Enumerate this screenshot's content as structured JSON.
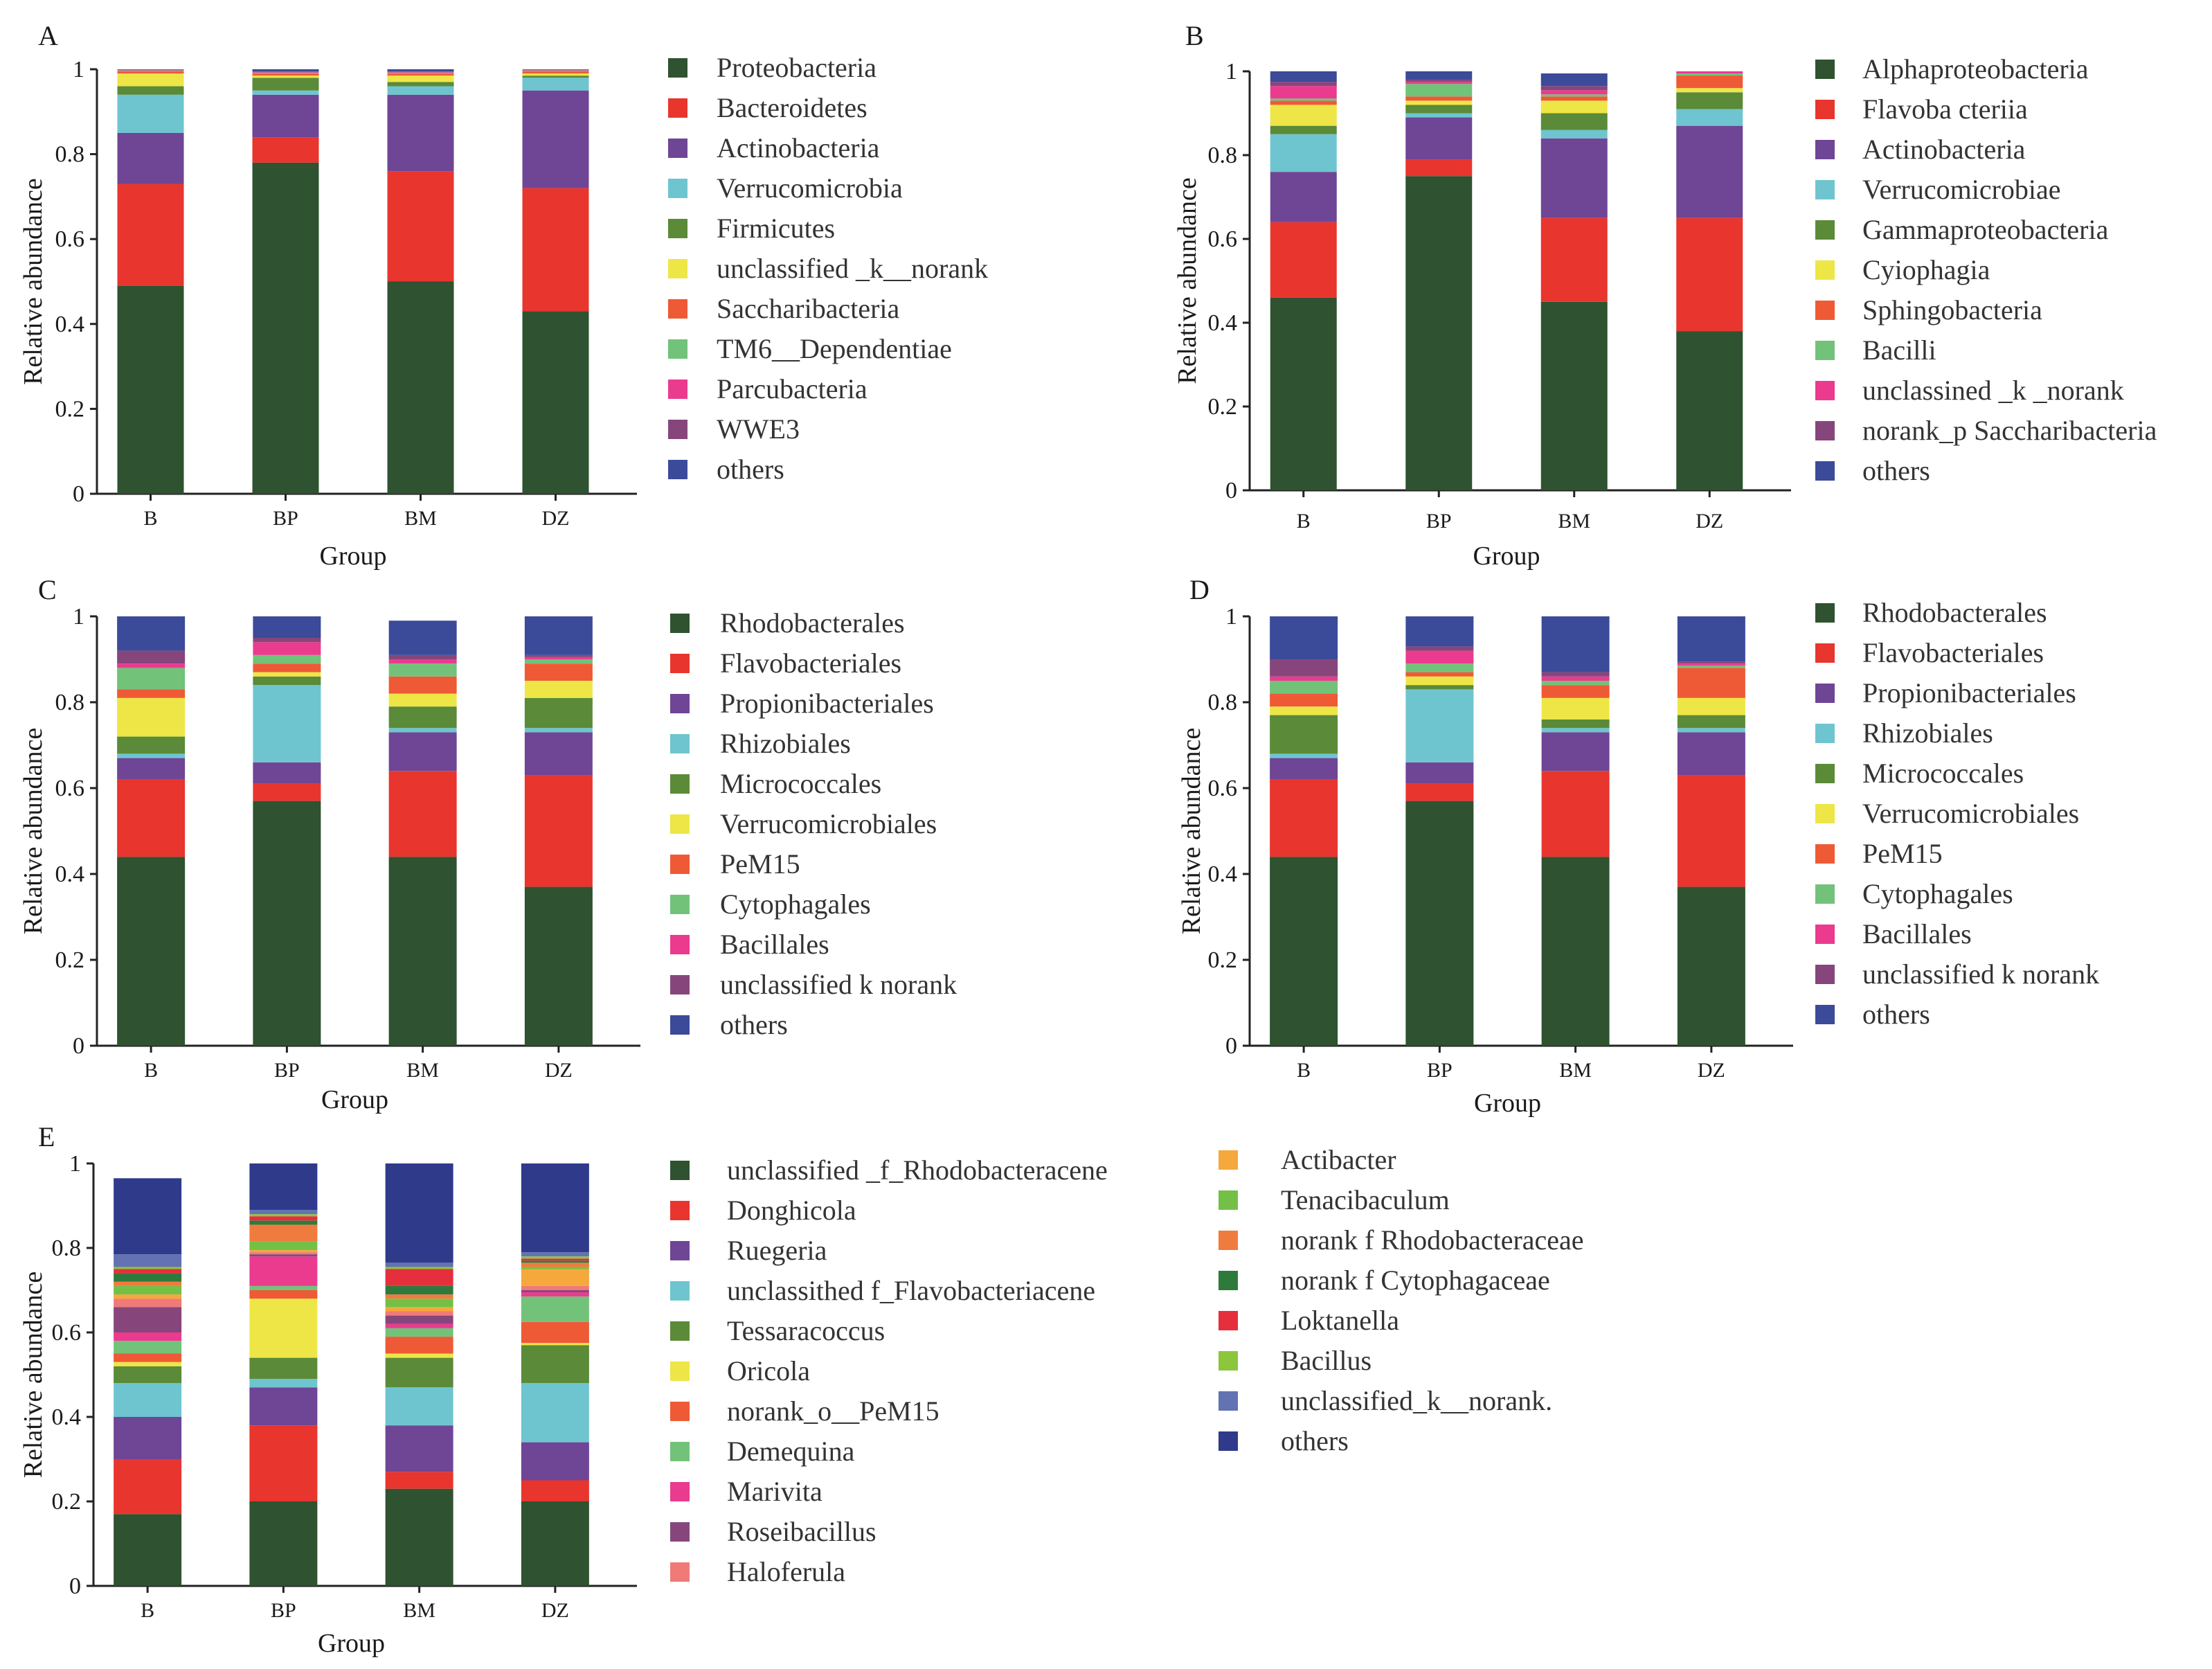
{
  "figure": {
    "xlabel": "Group",
    "ylabel": "Relative abundance"
  },
  "colors": {
    "dkgreen": "#2f5230",
    "red": "#e8352e",
    "purple": "#6f4595",
    "cyan": "#6ec5cf",
    "olive": "#5b8a38",
    "yellow": "#eee646",
    "orange": "#ee5a36",
    "ltgreen": "#72c27a",
    "pink": "#ea3b8f",
    "plum": "#86467c",
    "navy": "#3c4a9a",
    "salmon": "#f07a78",
    "gold": "#f5a83c",
    "lime": "#74c046",
    "tangerine": "#f07b3e",
    "forest": "#2e7a3c",
    "crimson": "#e62f3d",
    "yellowgreen": "#8cc63c",
    "slate": "#6272b3",
    "indigo": "#2f3a8a"
  },
  "chart_data": [
    {
      "panel": "A",
      "type": "bar",
      "stacked": true,
      "categories": [
        "B",
        "BP",
        "BM",
        "DZ"
      ],
      "ylim": [
        0,
        1
      ],
      "yticks": [
        "0",
        "0.2",
        "0.4",
        "0.6",
        "0.8",
        "1"
      ],
      "xlabel": "Group",
      "ylabel": "Relative abundance",
      "series": [
        {
          "name": "Proteobacteria",
          "color": "#2f5230",
          "values": [
            0.49,
            0.78,
            0.5,
            0.43
          ]
        },
        {
          "name": "Bacteroidetes",
          "color": "#e8352e",
          "values": [
            0.24,
            0.06,
            0.26,
            0.29
          ]
        },
        {
          "name": "Actinobacteria",
          "color": "#6f4595",
          "values": [
            0.12,
            0.1,
            0.18,
            0.23
          ]
        },
        {
          "name": "Verrucomicrobia",
          "color": "#6ec5cf",
          "values": [
            0.09,
            0.01,
            0.02,
            0.03
          ]
        },
        {
          "name": "Firmicutes",
          "color": "#5b8a38",
          "values": [
            0.02,
            0.03,
            0.01,
            0.005
          ]
        },
        {
          "name": "unclassified _k__norank",
          "color": "#eee646",
          "values": [
            0.03,
            0.005,
            0.015,
            0.005
          ]
        },
        {
          "name": "Saccharibacteria",
          "color": "#ee5a36",
          "values": [
            0.005,
            0.005,
            0.005,
            0.005
          ]
        },
        {
          "name": "TM6__Dependentiae",
          "color": "#72c27a",
          "values": [
            0.002,
            0.002,
            0.002,
            0.002
          ]
        },
        {
          "name": "Parcubacteria",
          "color": "#ea3b8f",
          "values": [
            0.002,
            0.002,
            0.002,
            0.002
          ]
        },
        {
          "name": "WWE3",
          "color": "#86467c",
          "values": [
            0.001,
            0.001,
            0.001,
            0.001
          ]
        },
        {
          "name": "others",
          "color": "#3c4a9a",
          "values": [
            0.005,
            0.005,
            0.005,
            0.005
          ]
        }
      ]
    },
    {
      "panel": "B",
      "type": "bar",
      "stacked": true,
      "categories": [
        "B",
        "BP",
        "BM",
        "DZ"
      ],
      "ylim": [
        0,
        1
      ],
      "yticks": [
        "0",
        "0.2",
        "0.4",
        "0.6",
        "0.8",
        "1"
      ],
      "xlabel": "Group",
      "ylabel": "Relative abundance",
      "series": [
        {
          "name": "Alphaproteobacteria",
          "color": "#2f5230",
          "values": [
            0.46,
            0.75,
            0.45,
            0.38
          ]
        },
        {
          "name": "Flavoba cteriia",
          "color": "#e8352e",
          "values": [
            0.18,
            0.04,
            0.2,
            0.27
          ]
        },
        {
          "name": "Actinobacteria",
          "color": "#6f4595",
          "values": [
            0.12,
            0.1,
            0.19,
            0.22
          ]
        },
        {
          "name": "Verrucomicrobiae",
          "color": "#6ec5cf",
          "values": [
            0.09,
            0.01,
            0.02,
            0.04
          ]
        },
        {
          "name": "Gammaproteobacteria",
          "color": "#5b8a38",
          "values": [
            0.02,
            0.02,
            0.04,
            0.04
          ]
        },
        {
          "name": "Cyiophagia",
          "color": "#eee646",
          "values": [
            0.05,
            0.01,
            0.03,
            0.01
          ]
        },
        {
          "name": "Sphingobacteria",
          "color": "#ee5a36",
          "values": [
            0.01,
            0.01,
            0.01,
            0.03
          ]
        },
        {
          "name": "Bacilli",
          "color": "#72c27a",
          "values": [
            0.005,
            0.03,
            0.005,
            0.005
          ]
        },
        {
          "name": "unclassined _k _norank",
          "color": "#ea3b8f",
          "values": [
            0.03,
            0.005,
            0.01,
            0.005
          ]
        },
        {
          "name": "norank_p Saccharibacteria",
          "color": "#86467c",
          "values": [
            0.01,
            0.005,
            0.01,
            0.005
          ]
        },
        {
          "name": "others",
          "color": "#3c4a9a",
          "values": [
            0.025,
            0.02,
            0.03,
            0.015
          ]
        }
      ]
    },
    {
      "panel": "C",
      "type": "bar",
      "stacked": true,
      "categories": [
        "B",
        "BP",
        "BM",
        "DZ"
      ],
      "ylim": [
        0,
        1
      ],
      "yticks": [
        "0",
        "0.2",
        "0.4",
        "0.6",
        "0.8",
        "1"
      ],
      "xlabel": "Group",
      "ylabel": "Relative abundance",
      "series": [
        {
          "name": "Rhodobacterales",
          "color": "#2f5230",
          "values": [
            0.44,
            0.57,
            0.44,
            0.37
          ]
        },
        {
          "name": "Flavobacteriales",
          "color": "#e8352e",
          "values": [
            0.18,
            0.04,
            0.2,
            0.26
          ]
        },
        {
          "name": "Propionibacteriales",
          "color": "#6f4595",
          "values": [
            0.05,
            0.05,
            0.09,
            0.1
          ]
        },
        {
          "name": "Rhizobiales",
          "color": "#6ec5cf",
          "values": [
            0.01,
            0.18,
            0.01,
            0.01
          ]
        },
        {
          "name": "Micrococcales",
          "color": "#5b8a38",
          "values": [
            0.04,
            0.02,
            0.05,
            0.07
          ]
        },
        {
          "name": "Verrucomicrobiales",
          "color": "#eee646",
          "values": [
            0.09,
            0.01,
            0.03,
            0.04
          ]
        },
        {
          "name": "PeM15",
          "color": "#ee5a36",
          "values": [
            0.02,
            0.02,
            0.04,
            0.04
          ]
        },
        {
          "name": "Cytophagales",
          "color": "#72c27a",
          "values": [
            0.05,
            0.02,
            0.03,
            0.01
          ]
        },
        {
          "name": "Bacillales",
          "color": "#ea3b8f",
          "values": [
            0.01,
            0.03,
            0.01,
            0.005
          ]
        },
        {
          "name": "unclassified k norank",
          "color": "#86467c",
          "values": [
            0.03,
            0.01,
            0.01,
            0.005
          ]
        },
        {
          "name": "others",
          "color": "#3c4a9a",
          "values": [
            0.08,
            0.07,
            0.08,
            0.09
          ]
        }
      ]
    },
    {
      "panel": "D",
      "type": "bar",
      "stacked": true,
      "categories": [
        "B",
        "BP",
        "BM",
        "DZ"
      ],
      "ylim": [
        0,
        1
      ],
      "yticks": [
        "0",
        "0.2",
        "0.4",
        "0.6",
        "0.8",
        "1"
      ],
      "xlabel": "Group",
      "ylabel": "Relative abundance",
      "series": [
        {
          "name": "Rhodobacterales",
          "color": "#2f5230",
          "values": [
            0.44,
            0.57,
            0.44,
            0.37
          ]
        },
        {
          "name": "Flavobacteriales",
          "color": "#e8352e",
          "values": [
            0.18,
            0.04,
            0.2,
            0.26
          ]
        },
        {
          "name": "Propionibacteriales",
          "color": "#6f4595",
          "values": [
            0.05,
            0.05,
            0.09,
            0.1
          ]
        },
        {
          "name": "Rhizobiales",
          "color": "#6ec5cf",
          "values": [
            0.01,
            0.17,
            0.01,
            0.01
          ]
        },
        {
          "name": "Micrococcales",
          "color": "#5b8a38",
          "values": [
            0.09,
            0.01,
            0.02,
            0.03
          ]
        },
        {
          "name": "Verrucomicrobiales",
          "color": "#eee646",
          "values": [
            0.02,
            0.02,
            0.05,
            0.04
          ]
        },
        {
          "name": "PeM15",
          "color": "#ee5a36",
          "values": [
            0.03,
            0.01,
            0.03,
            0.07
          ]
        },
        {
          "name": "Cytophagales",
          "color": "#72c27a",
          "values": [
            0.03,
            0.02,
            0.01,
            0.005
          ]
        },
        {
          "name": "Bacillales",
          "color": "#ea3b8f",
          "values": [
            0.01,
            0.03,
            0.01,
            0.005
          ]
        },
        {
          "name": "unclassified k norank",
          "color": "#86467c",
          "values": [
            0.04,
            0.01,
            0.01,
            0.005
          ]
        },
        {
          "name": "others",
          "color": "#3c4a9a",
          "values": [
            0.1,
            0.07,
            0.14,
            0.12
          ]
        }
      ]
    },
    {
      "panel": "E",
      "type": "bar",
      "stacked": true,
      "categories": [
        "B",
        "BP",
        "BM",
        "DZ"
      ],
      "ylim": [
        0,
        1
      ],
      "yticks": [
        "0",
        "0.2",
        "0.4",
        "0.6",
        "0.8",
        "1"
      ],
      "xlabel": "Group",
      "ylabel": "Relative abundance",
      "series": [
        {
          "name": "unclassified _f_Rhodobacteracene",
          "color": "#2f5230",
          "values": [
            0.17,
            0.2,
            0.23,
            0.2
          ]
        },
        {
          "name": "Donghicola",
          "color": "#e8352e",
          "values": [
            0.13,
            0.18,
            0.04,
            0.05
          ]
        },
        {
          "name": "Ruegeria",
          "color": "#6f4595",
          "values": [
            0.1,
            0.09,
            0.11,
            0.09
          ]
        },
        {
          "name": "unclassithed f_Flavobacteriacene",
          "color": "#6ec5cf",
          "values": [
            0.08,
            0.02,
            0.09,
            0.14
          ]
        },
        {
          "name": "Tessaracoccus",
          "color": "#5b8a38",
          "values": [
            0.04,
            0.05,
            0.07,
            0.09
          ]
        },
        {
          "name": "Oricola",
          "color": "#eee646",
          "values": [
            0.01,
            0.14,
            0.01,
            0.005
          ]
        },
        {
          "name": "norank_o__PeM15",
          "color": "#ee5a36",
          "values": [
            0.02,
            0.02,
            0.04,
            0.05
          ]
        },
        {
          "name": "Demequina",
          "color": "#72c27a",
          "values": [
            0.03,
            0.01,
            0.02,
            0.06
          ]
        },
        {
          "name": "Marivita",
          "color": "#ea3b8f",
          "values": [
            0.02,
            0.07,
            0.01,
            0.01
          ]
        },
        {
          "name": "Roseibacillus",
          "color": "#86467c",
          "values": [
            0.06,
            0.005,
            0.02,
            0.005
          ]
        },
        {
          "name": "Haloferula",
          "color": "#f07a78",
          "values": [
            0.02,
            0.005,
            0.01,
            0.01
          ]
        },
        {
          "name": "Actibacter",
          "color": "#f5a83c",
          "values": [
            0.01,
            0.005,
            0.01,
            0.04
          ]
        },
        {
          "name": "Tenacibaculum",
          "color": "#74c046",
          "values": [
            0.02,
            0.02,
            0.02,
            0.005
          ]
        },
        {
          "name": "norank f Rhodobacteraceae",
          "color": "#f07b3e",
          "values": [
            0.01,
            0.04,
            0.01,
            0.01
          ]
        },
        {
          "name": "norank f Cytophagaceae",
          "color": "#2e7a3c",
          "values": [
            0.02,
            0.01,
            0.02,
            0.005
          ]
        },
        {
          "name": "Loktanella",
          "color": "#e62f3d",
          "values": [
            0.01,
            0.01,
            0.04,
            0.005
          ]
        },
        {
          "name": "Bacillus",
          "color": "#8cc63c",
          "values": [
            0.005,
            0.005,
            0.005,
            0.005
          ]
        },
        {
          "name": "unclassified_k__norank.",
          "color": "#6272b3",
          "values": [
            0.03,
            0.01,
            0.01,
            0.01
          ]
        },
        {
          "name": "others",
          "color": "#2f3a8a",
          "values": [
            0.18,
            0.13,
            0.24,
            0.21
          ]
        }
      ]
    }
  ]
}
